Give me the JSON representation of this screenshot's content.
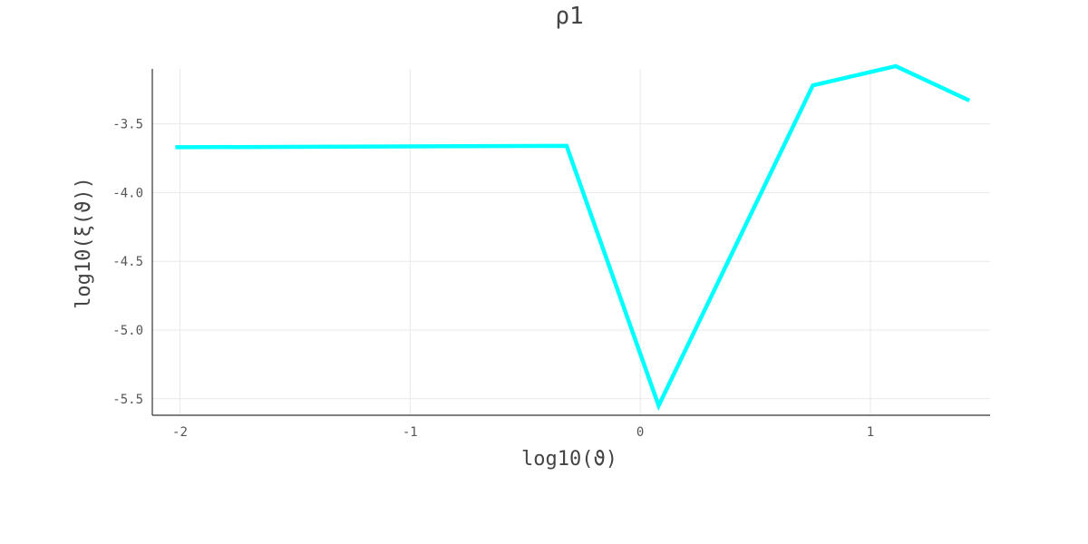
{
  "chart_data": {
    "type": "line",
    "title": "ρ1",
    "xlabel": "log10(ϑ)",
    "ylabel": "log10(ξ(ϑ))",
    "xlim": [
      -2.12,
      1.52
    ],
    "ylim": [
      -5.62,
      -3.1
    ],
    "xticks": [
      -2,
      -1,
      0,
      1
    ],
    "xtick_labels": [
      "-2",
      "-1",
      "0",
      "1"
    ],
    "yticks": [
      -3.5,
      -4.0,
      -4.5,
      -5.0,
      -5.5
    ],
    "ytick_labels": [
      "-3.5",
      "-4.0",
      "-4.5",
      "-5.0",
      "-5.5"
    ],
    "grid": true,
    "legend": false,
    "series": [
      {
        "color": "#00ffff",
        "x": [
          -2.02,
          -0.32,
          0.08,
          0.75,
          1.11,
          1.43
        ],
        "y": [
          -3.67,
          -3.66,
          -5.55,
          -3.22,
          -3.08,
          -3.33
        ]
      }
    ]
  }
}
